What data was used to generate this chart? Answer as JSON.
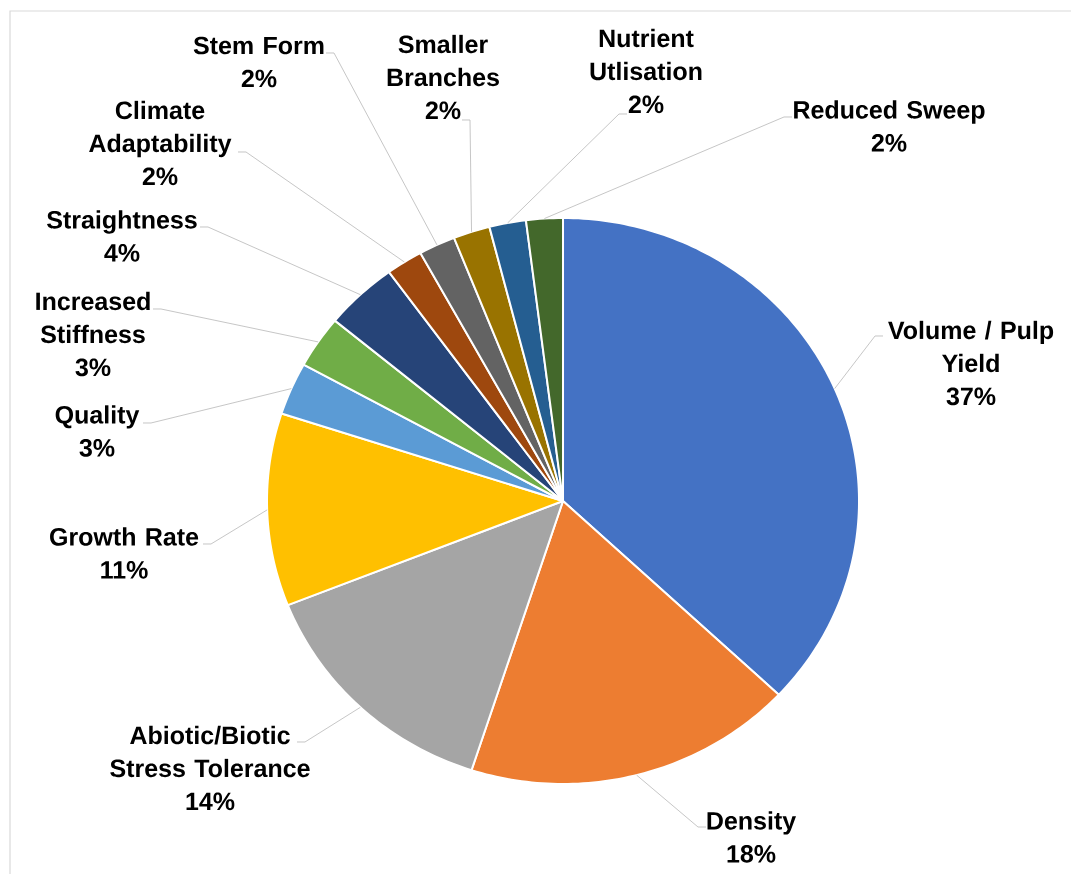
{
  "chart_data": {
    "type": "pie",
    "categories": [
      "Volume / Pulp Yield",
      "Density",
      "Abiotic/Biotic Stress Tolerance",
      "Growth Rate",
      "Quality",
      "Increased Stiffness",
      "Straightness",
      "Climate Adaptability",
      "Stem Form",
      "Smaller Branches",
      "Nutrient Utlisation",
      "Reduced Sweep"
    ],
    "values": [
      37,
      18,
      14,
      11,
      3,
      3,
      4,
      2,
      2,
      2,
      2,
      2
    ],
    "value_labels": [
      "37%",
      "18%",
      "14%",
      "11%",
      "3%",
      "3%",
      "4%",
      "2%",
      "2%",
      "2%",
      "2%",
      "2%"
    ],
    "colors": [
      "#4472c4",
      "#ed7d31",
      "#a5a5a5",
      "#ffc000",
      "#5b9bd5",
      "#70ad47",
      "#264478",
      "#9e480e",
      "#636363",
      "#997300",
      "#255e91",
      "#43682b"
    ]
  }
}
